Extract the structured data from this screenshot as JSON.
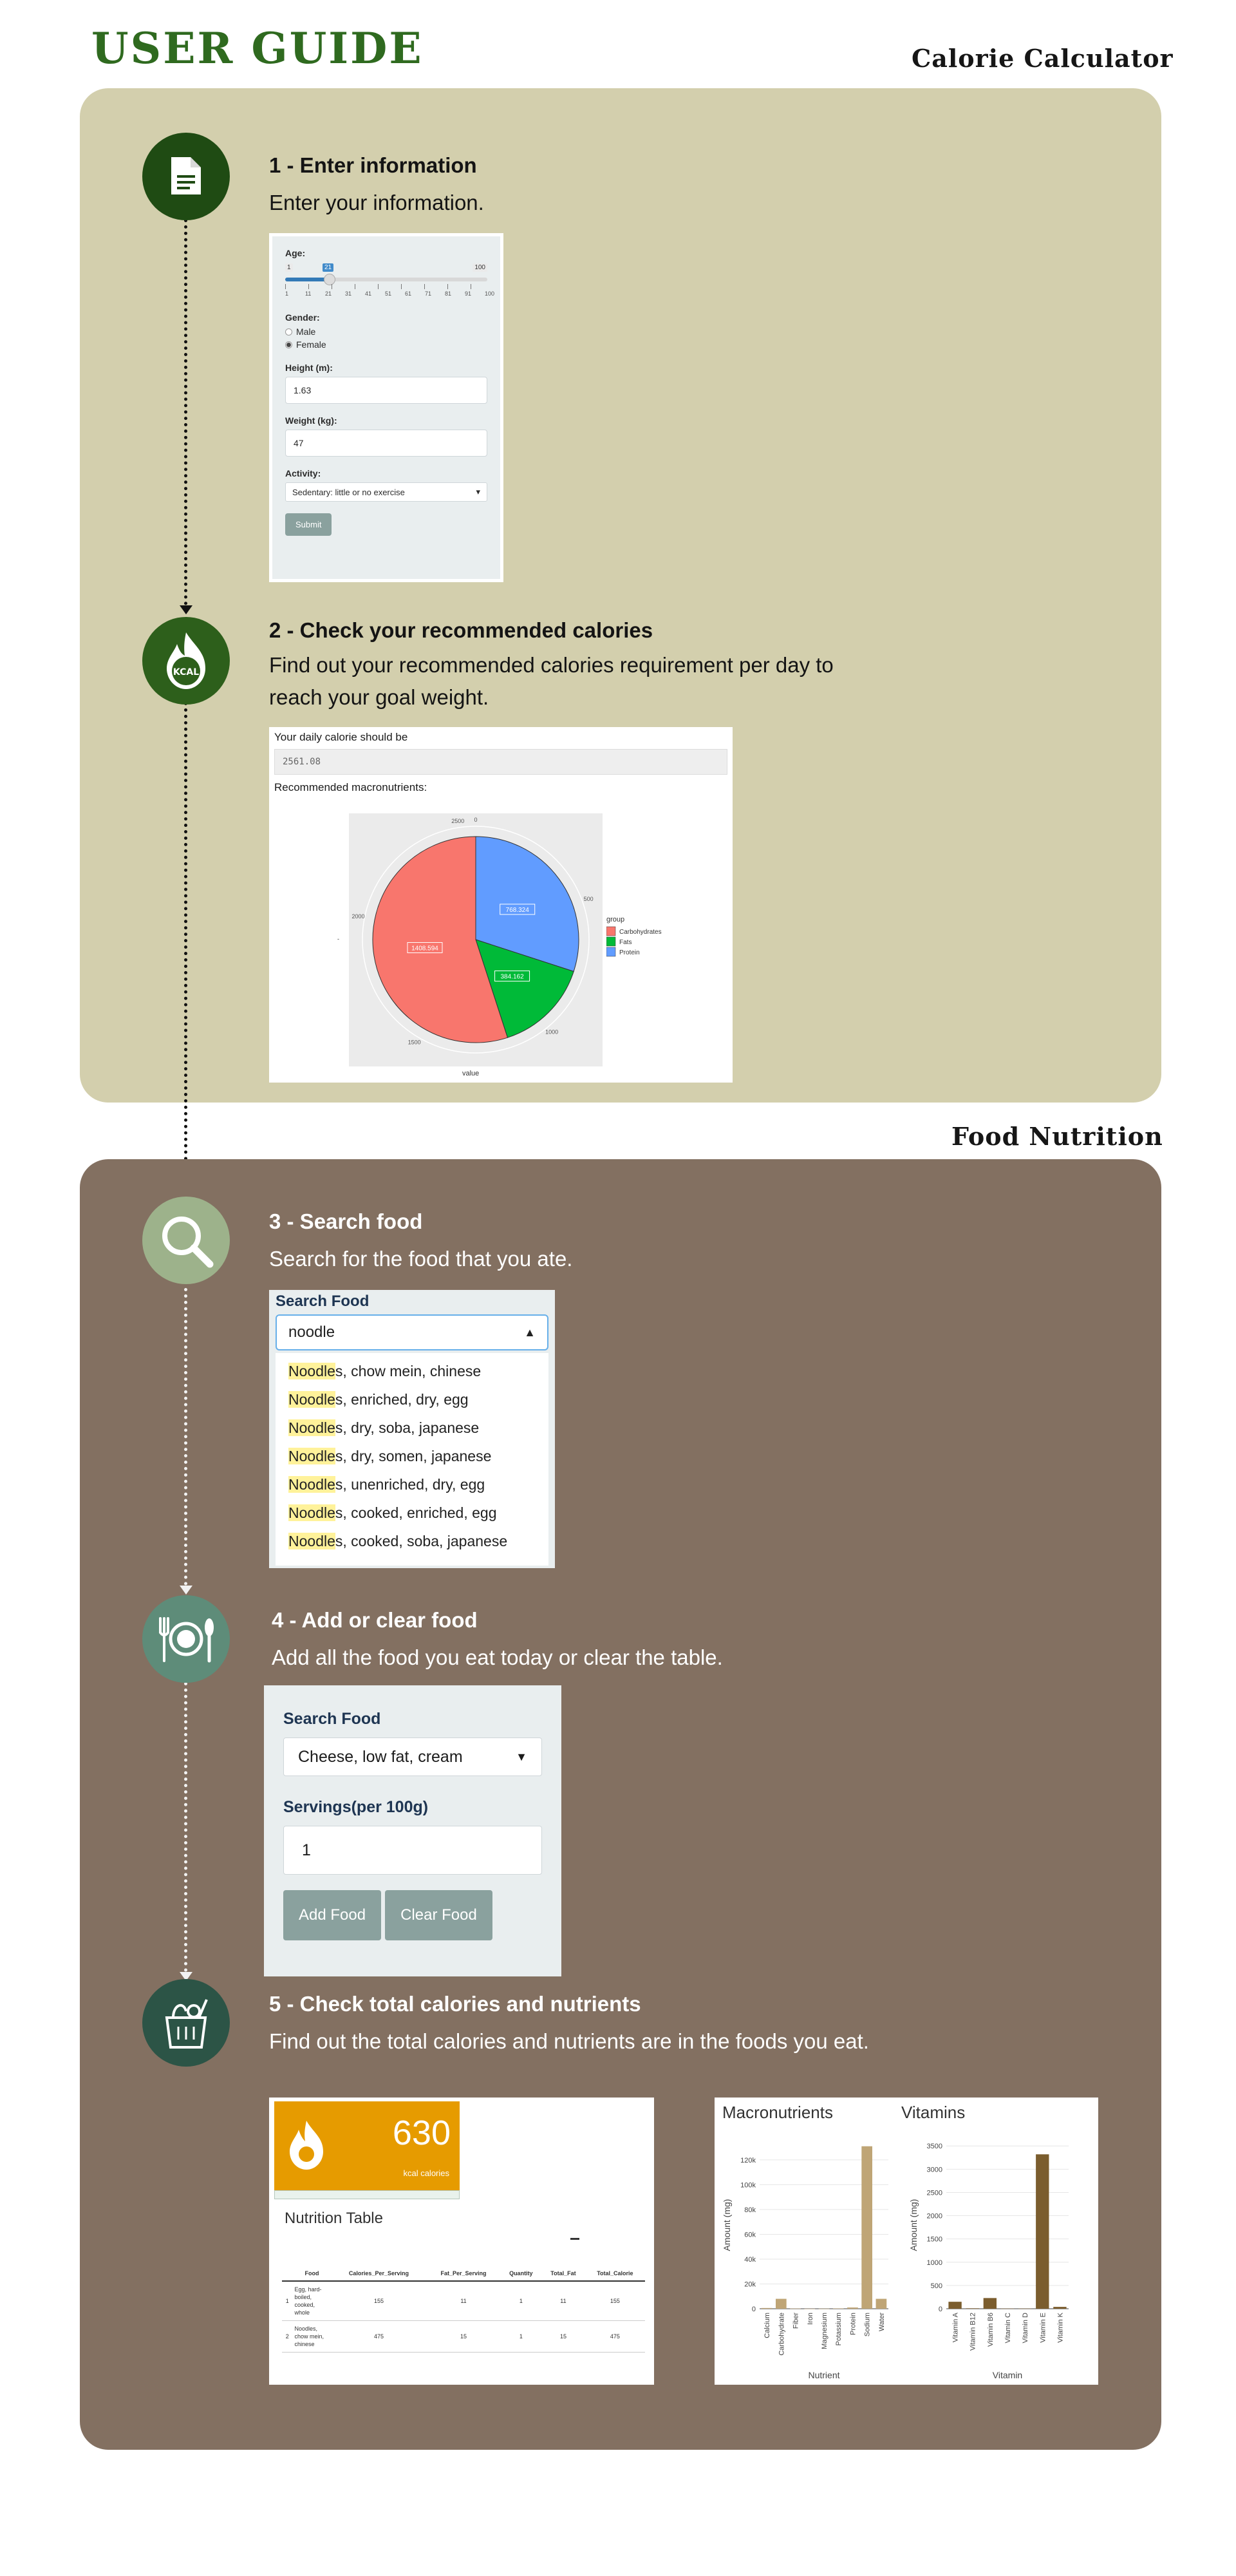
{
  "header": {
    "title": "USER GUIDE"
  },
  "sections": {
    "calculator_title": "Calorie Calculator",
    "nutrition_title": "Food Nutrition"
  },
  "colors": {
    "panel_1": "#d3cfad",
    "panel_2": "#837061",
    "title_green": "#2f6a1f",
    "accent_orange": "#e69b00",
    "bar_brown": "#bfa576"
  },
  "icons": [
    "document-icon",
    "kcal-flame-icon",
    "magnifier-icon",
    "plate-cutlery-icon",
    "grocery-bag-icon"
  ],
  "steps": [
    {
      "heading": "1 - Enter information",
      "desc_lines": [
        "Enter your information."
      ]
    },
    {
      "heading": "2 - Check your recommended calories",
      "desc_lines": [
        "Find out your recommended calories requirement per day to",
        "reach your goal weight."
      ]
    },
    {
      "heading": "3 - Search food",
      "desc_lines": [
        "Search for the food that you ate."
      ]
    },
    {
      "heading": "4 - Add or clear food",
      "desc_lines": [
        "Add all the food you eat today or clear the table."
      ]
    },
    {
      "heading": "5 - Check total calories and nutrients",
      "desc_lines": [
        "Find out the total calories and nutrients are in the foods you eat."
      ]
    }
  ],
  "form1": {
    "age_label": "Age:",
    "age_min": "1",
    "age_value": "21",
    "age_max": "100",
    "age_ticks": [
      "1",
      "11",
      "21",
      "31",
      "41",
      "51",
      "61",
      "71",
      "81",
      "91",
      "100"
    ],
    "gender_label": "Gender:",
    "gender_options": [
      "Male",
      "Female"
    ],
    "gender_selected": "Female",
    "height_label": "Height (m):",
    "height_value": "1.63",
    "weight_label": "Weight (kg):",
    "weight_value": "47",
    "activity_label": "Activity:",
    "activity_value": "Sedentary: little or no exercise",
    "submit_label": "Submit"
  },
  "result": {
    "calorie_label": "Your daily calorie should be",
    "calorie_value": "2561.08",
    "macro_label": "Recommended macronutrients:",
    "pie_axis_label": "value"
  },
  "chart_data": [
    {
      "type": "pie",
      "title": "",
      "legend_title": "group",
      "legend_position": "right",
      "slices": [
        {
          "label": "Carbohydrates",
          "value": 1408.594,
          "display": "1408.594",
          "color": "#f8766d"
        },
        {
          "label": "Fats",
          "value": 384.162,
          "display": "384.162",
          "color": "#00ba38"
        },
        {
          "label": "Protein",
          "value": 768.324,
          "display": "768.324",
          "color": "#619cff"
        }
      ],
      "radial_ticks": [
        "0",
        "500",
        "1000",
        "1500",
        "2000",
        "2500"
      ]
    },
    {
      "type": "bar",
      "title": "Macronutrients",
      "xlabel": "Nutrient",
      "ylabel": "Amount (mg)",
      "ylim": [
        0,
        135000
      ],
      "y_ticks": [
        "0",
        "20k",
        "40k",
        "60k",
        "80k",
        "100k",
        "120k"
      ],
      "y_tick_values": [
        0,
        20000,
        40000,
        60000,
        80000,
        100000,
        120000
      ],
      "categories": [
        "Calcium",
        "Carbohydrate",
        "Fiber",
        "Iron",
        "Magnesium",
        "Potassium",
        "Protein",
        "Sodium",
        "Water"
      ],
      "values": [
        600,
        8000,
        200,
        50,
        100,
        300,
        1000,
        131000,
        8000
      ]
    },
    {
      "type": "bar",
      "title": "Vitamins",
      "xlabel": "Vitamin",
      "ylabel": "Amount (mg)",
      "ylim": [
        0,
        3600
      ],
      "y_ticks": [
        "0",
        "500",
        "1000",
        "1500",
        "2000",
        "2500",
        "3000",
        "3500"
      ],
      "y_tick_values": [
        0,
        500,
        1000,
        1500,
        2000,
        2500,
        3000,
        3500
      ],
      "categories": [
        "Vitamin A",
        "Vitamin B12",
        "Vitamin B6",
        "Vitamin C",
        "Vitamin D",
        "Vitamin E",
        "Vitamin K"
      ],
      "values": [
        150,
        10,
        230,
        5,
        5,
        3320,
        40
      ]
    }
  ],
  "search3": {
    "label": "Search Food",
    "query": "noodle",
    "results": [
      {
        "match": "Noodle",
        "rest": "s, chow mein, chinese"
      },
      {
        "match": "Noodle",
        "rest": "s, enriched, dry, egg"
      },
      {
        "match": "Noodle",
        "rest": "s, dry, soba, japanese"
      },
      {
        "match": "Noodle",
        "rest": "s, dry, somen, japanese"
      },
      {
        "match": "Noodle",
        "rest": "s, unenriched, dry, egg"
      },
      {
        "match": "Noodle",
        "rest": "s, cooked, enriched, egg"
      },
      {
        "match": "Noodle",
        "rest": "s, cooked, soba, japanese"
      }
    ]
  },
  "form4": {
    "search_label": "Search Food",
    "selected_food": "Cheese, low fat, cream",
    "servings_label": "Servings(per 100g)",
    "servings_value": "1",
    "add_label": "Add Food",
    "clear_label": "Clear Food"
  },
  "summary": {
    "kcal_value": "630",
    "kcal_unit": "kcal calories",
    "table_title": "Nutrition Table",
    "columns": [
      "",
      "Food",
      "Calories_Per_Serving",
      "Fat_Per_Serving",
      "Quantity",
      "Total_Fat",
      "Total_Calorie"
    ],
    "rows": [
      [
        "1",
        "Egg, hard-boiled, cooked, whole",
        "155",
        "11",
        "1",
        "11",
        "155"
      ],
      [
        "2",
        "Noodles, chow mein, chinese",
        "475",
        "15",
        "1",
        "15",
        "475"
      ]
    ]
  }
}
